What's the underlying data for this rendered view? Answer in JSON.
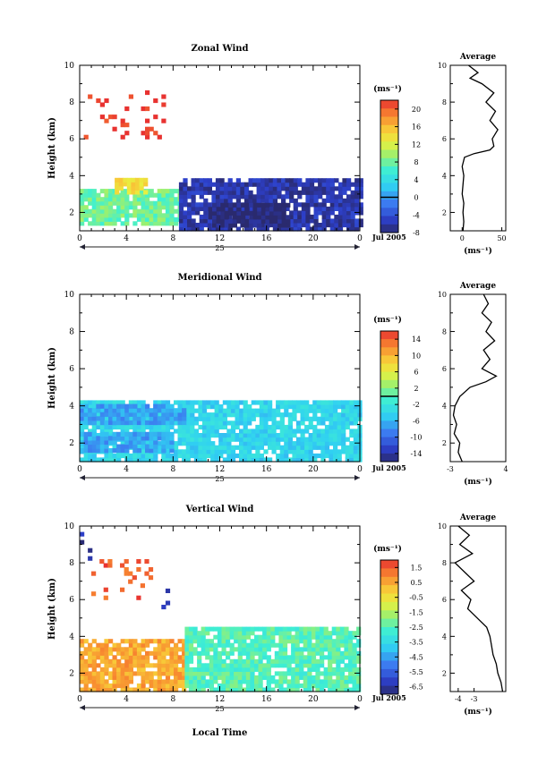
{
  "figure": {
    "x_axis_title": "Local Time",
    "date_label": "Jul 2005",
    "day_label": "25",
    "height_label": "Height (km)",
    "unit_label": "(ms⁻¹)",
    "avg_title": "Average"
  },
  "chart_data": [
    {
      "type": "heatmap",
      "title": "Zonal Wind",
      "xlabel": "",
      "ylabel": "Height (km)",
      "xlim": [
        0,
        24
      ],
      "ylim": [
        1,
        10
      ],
      "xticks": [
        "0",
        "4",
        "8",
        "12",
        "16",
        "20",
        "0"
      ],
      "yticks": [
        "2",
        "4",
        "6",
        "8",
        "10"
      ],
      "colorbar": {
        "unit": "(ms⁻¹)",
        "range": [
          -8,
          22
        ],
        "ticks": [
          "-8",
          "-4",
          "0",
          "4",
          "8",
          "12",
          "16",
          "20"
        ],
        "zero_line": 0
      },
      "regions": [
        {
          "x": [
            0,
            8.5
          ],
          "y": [
            1.3,
            3.2
          ],
          "value": 8
        },
        {
          "x": [
            3,
            5.5
          ],
          "y": [
            3.0,
            3.8
          ],
          "value": 14
        },
        {
          "x": [
            8.5,
            24
          ],
          "y": [
            1.0,
            3.8
          ],
          "value": -6
        },
        {
          "x": [
            11,
            18
          ],
          "y": [
            1.2,
            2.5
          ],
          "value": -8
        },
        {
          "x": [
            0,
            7
          ],
          "y": [
            6.0,
            8.5
          ],
          "value": 22,
          "sparse": true
        }
      ],
      "average_profile": {
        "xlabel": "(ms⁻¹)",
        "xlim": [
          -15,
          55
        ],
        "xticks": [
          "0",
          "50"
        ],
        "height_km": [
          1,
          1.5,
          2,
          2.5,
          3,
          3.5,
          4,
          4.5,
          5,
          5.2,
          5.4,
          5.6,
          6,
          6.5,
          7,
          7.5,
          8,
          8.5,
          9,
          9.3,
          9.6,
          10
        ],
        "wind": [
          1,
          2,
          1,
          2,
          0,
          1,
          2,
          0,
          3,
          15,
          35,
          40,
          38,
          45,
          35,
          42,
          30,
          40,
          25,
          10,
          20,
          8
        ]
      }
    },
    {
      "type": "heatmap",
      "title": "Meridional Wind",
      "xlabel": "",
      "ylabel": "Height (km)",
      "xlim": [
        0,
        24
      ],
      "ylim": [
        1,
        10
      ],
      "xticks": [
        "0",
        "4",
        "8",
        "12",
        "16",
        "20",
        "0"
      ],
      "yticks": [
        "2",
        "4",
        "6",
        "8",
        "10"
      ],
      "colorbar": {
        "unit": "(ms⁻¹)",
        "range": [
          -16,
          16
        ],
        "ticks": [
          "-14",
          "-10",
          "-6",
          "-2",
          "2",
          "6",
          "10",
          "14"
        ],
        "zero_line": 0
      },
      "regions": [
        {
          "x": [
            0,
            24
          ],
          "y": [
            1.0,
            4.1
          ],
          "value": -4
        },
        {
          "x": [
            0,
            8
          ],
          "y": [
            1.5,
            2.5
          ],
          "value": -7
        },
        {
          "x": [
            0,
            9
          ],
          "y": [
            3.0,
            4.0
          ],
          "value": -7
        }
      ],
      "average_profile": {
        "xlabel": "(ms⁻¹)",
        "xlim": [
          -3,
          4
        ],
        "xticks": [
          "-3",
          "4"
        ],
        "height_km": [
          1,
          1.5,
          2,
          2.5,
          3,
          3.5,
          4,
          4.5,
          5,
          5.3,
          5.6,
          6,
          6.5,
          7,
          7.5,
          8,
          8.5,
          9,
          9.5,
          10
        ],
        "wind": [
          -1.5,
          -2.0,
          -1.8,
          -2.5,
          -2.2,
          -2.6,
          -2.4,
          -1.8,
          -0.5,
          1.5,
          2.8,
          1.0,
          2.0,
          1.2,
          2.6,
          1.5,
          2.2,
          1.0,
          1.8,
          1.2
        ]
      }
    },
    {
      "type": "heatmap",
      "title": "Vertical Wind",
      "xlabel": "Local Time",
      "ylabel": "Height (km)",
      "xlim": [
        0,
        24
      ],
      "ylim": [
        1,
        10
      ],
      "xticks": [
        "0",
        "4",
        "8",
        "12",
        "16",
        "20",
        "0"
      ],
      "yticks": [
        "2",
        "4",
        "6",
        "8",
        "10"
      ],
      "colorbar": {
        "unit": "(ms⁻¹)",
        "range": [
          -7,
          2
        ],
        "ticks": [
          "-6.5",
          "-5.5",
          "-4.5",
          "-3.5",
          "-2.5",
          "-1.5",
          "-0.5",
          "0.5",
          "1.5"
        ],
        "zero_line": null
      },
      "regions": [
        {
          "x": [
            0,
            9
          ],
          "y": [
            1.0,
            3.8
          ],
          "value": 0.5
        },
        {
          "x": [
            9,
            24
          ],
          "y": [
            1.0,
            4.5
          ],
          "value": -2.5
        },
        {
          "x": [
            0,
            1
          ],
          "y": [
            5.5,
            10
          ],
          "value": -6.5,
          "sparse": true
        },
        {
          "x": [
            7,
            7.5
          ],
          "y": [
            5.5,
            8.5
          ],
          "value": -6.5,
          "sparse": true
        },
        {
          "x": [
            1,
            6
          ],
          "y": [
            6.0,
            8.0
          ],
          "value": 1.5,
          "sparse": true
        }
      ],
      "average_profile": {
        "xlabel": "(ms⁻¹)",
        "xlim": [
          -4.5,
          -1
        ],
        "xticks": [
          "-4",
          "-3"
        ],
        "height_km": [
          1,
          1.5,
          2,
          2.5,
          3,
          3.5,
          4,
          4.5,
          5,
          5.5,
          6,
          6.5,
          7,
          7.5,
          8,
          8.5,
          9,
          9.5,
          10
        ],
        "wind": [
          -1.2,
          -1.3,
          -1.5,
          -1.6,
          -1.8,
          -1.9,
          -2.0,
          -2.2,
          -2.8,
          -3.4,
          -3.2,
          -3.8,
          -3.0,
          -3.6,
          -4.2,
          -3.1,
          -3.9,
          -3.3,
          -4.0
        ]
      }
    }
  ]
}
